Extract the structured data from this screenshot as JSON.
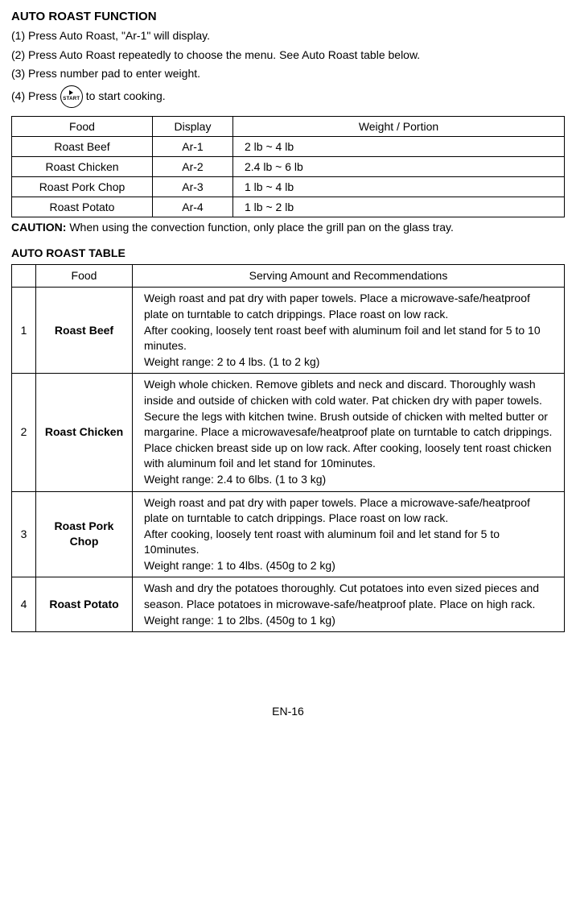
{
  "title": "AUTO ROAST FUNCTION",
  "steps": [
    "(1) Press Auto Roast, \"Ar-1\" will display.",
    "(2) Press Auto Roast repeatedly to choose the menu. See Auto Roast table below.",
    "(3) Press number pad to enter weight."
  ],
  "step4_prefix": "(4) Press",
  "step4_suffix": "to start cooking.",
  "start_icon_label": "START",
  "table1": {
    "headers": {
      "food": "Food",
      "display": "Display",
      "weight": "Weight / Portion"
    },
    "rows": [
      {
        "food": "Roast Beef",
        "display": "Ar-1",
        "weight": "2 lb ~ 4 lb"
      },
      {
        "food": "Roast Chicken",
        "display": "Ar-2",
        "weight": "2.4 lb ~ 6 lb"
      },
      {
        "food": "Roast Pork Chop",
        "display": "Ar-3",
        "weight": "1 lb ~ 4 lb"
      },
      {
        "food": "Roast Potato",
        "display": "Ar-4",
        "weight": "1 lb ~ 2 lb"
      }
    ]
  },
  "caution": {
    "label": "CAUTION:",
    "text": " When using the convection function, only place the grill pan on the glass tray."
  },
  "table2_title": "AUTO ROAST TABLE",
  "table2": {
    "headers": {
      "food": "Food",
      "rec": "Serving Amount and Recommendations"
    },
    "rows": [
      {
        "num": "1",
        "food": "Roast Beef",
        "rec": "Weigh roast and pat dry with paper towels. Place a microwave-safe/heatproof plate on turntable to catch drippings. Place roast on low rack.\nAfter cooking, loosely tent roast beef with aluminum foil and let stand for 5 to 10 minutes.\nWeight range: 2 to 4 lbs. (1 to 2 kg)"
      },
      {
        "num": "2",
        "food": "Roast Chicken",
        "rec": "Weigh whole chicken. Remove giblets and neck and discard. Thoroughly wash inside and outside of chicken with cold water. Pat chicken dry with paper towels. Secure the legs with kitchen twine. Brush outside of chicken with melted butter or margarine. Place a microwavesafe/heatproof plate on turntable to catch drippings.\nPlace chicken breast side up on low rack. After cooking, loosely tent roast chicken with aluminum foil and let stand for 10minutes.\nWeight range: 2.4 to 6lbs. (1 to 3 kg)"
      },
      {
        "num": "3",
        "food": "Roast Pork Chop",
        "rec": "Weigh roast and pat dry with paper towels. Place a microwave-safe/heatproof plate on turntable to catch drippings. Place roast on low rack.\nAfter cooking, loosely tent roast with aluminum foil and let stand for 5 to 10minutes.\nWeight range: 1 to 4lbs. (450g to 2 kg)"
      },
      {
        "num": "4",
        "food": "Roast Potato",
        "rec": "Wash and dry the potatoes thoroughly. Cut potatoes into even sized pieces and season. Place potatoes in microwave-safe/heatproof plate.  Place on high rack.\nWeight range: 1 to 2lbs. (450g to 1 kg)"
      }
    ]
  },
  "page_number": "EN-16"
}
